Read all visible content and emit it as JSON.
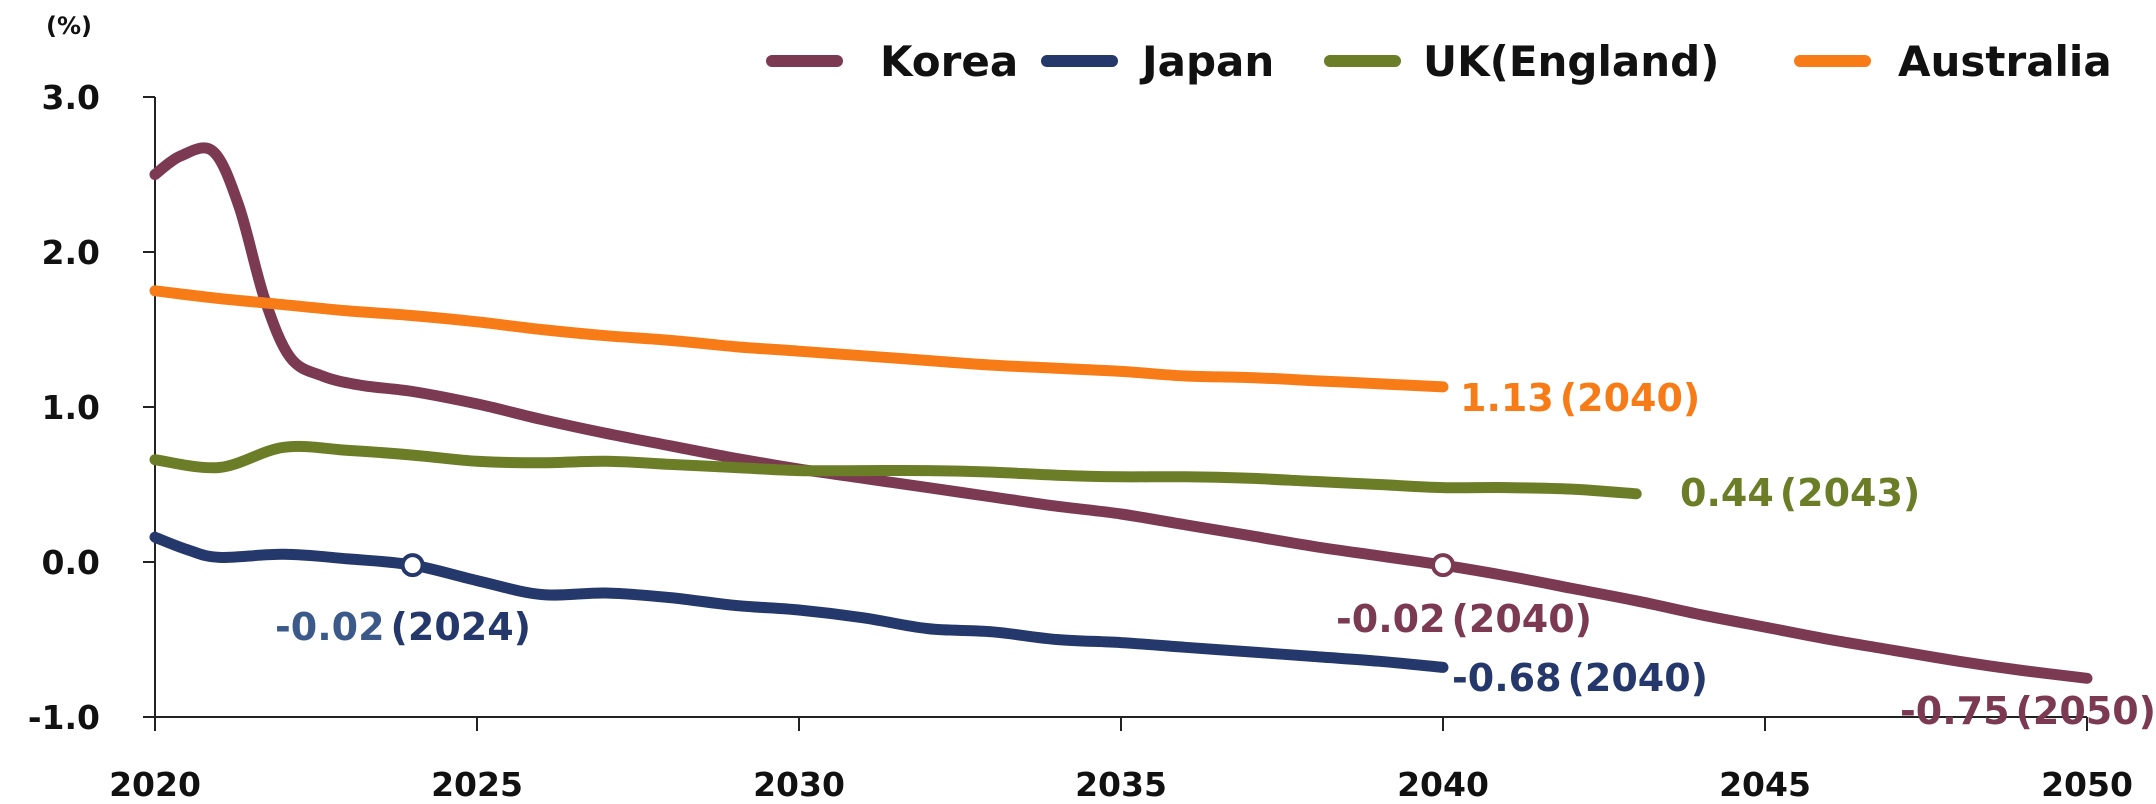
{
  "chart_data": {
    "type": "line",
    "ylabel": "(%)",
    "xlim": [
      2020,
      2050
    ],
    "ylim": [
      -1.0,
      3.0
    ],
    "x_ticks": [
      "2020",
      "2025",
      "2030",
      "2035",
      "2040",
      "2045",
      "2050"
    ],
    "y_ticks": [
      "3.0",
      "2.0",
      "1.0",
      "0.0",
      "-1.0"
    ],
    "grid": false,
    "legend_position": "top-right",
    "series": [
      {
        "name": "Korea",
        "color": "#7b3a52",
        "points": [
          [
            2020,
            2.5
          ],
          [
            2020.4,
            2.62
          ],
          [
            2020.9,
            2.65
          ],
          [
            2021.3,
            2.3
          ],
          [
            2021.7,
            1.7
          ],
          [
            2022.1,
            1.32
          ],
          [
            2022.6,
            1.2
          ],
          [
            2023.2,
            1.14
          ],
          [
            2024,
            1.1
          ],
          [
            2025,
            1.02
          ],
          [
            2026,
            0.92
          ],
          [
            2027,
            0.83
          ],
          [
            2028,
            0.75
          ],
          [
            2029,
            0.67
          ],
          [
            2030,
            0.6
          ],
          [
            2031,
            0.54
          ],
          [
            2032,
            0.48
          ],
          [
            2033,
            0.42
          ],
          [
            2034,
            0.36
          ],
          [
            2035,
            0.31
          ],
          [
            2036,
            0.24
          ],
          [
            2037,
            0.17
          ],
          [
            2038,
            0.1
          ],
          [
            2039,
            0.04
          ],
          [
            2040,
            -0.02
          ],
          [
            2041,
            -0.09
          ],
          [
            2042,
            -0.17
          ],
          [
            2043,
            -0.25
          ],
          [
            2044,
            -0.34
          ],
          [
            2045,
            -0.42
          ],
          [
            2046,
            -0.5
          ],
          [
            2047,
            -0.57
          ],
          [
            2048,
            -0.64
          ],
          [
            2049,
            -0.7
          ],
          [
            2050,
            -0.75
          ]
        ]
      },
      {
        "name": "Japan",
        "color": "#25386b",
        "points": [
          [
            2020,
            0.16
          ],
          [
            2020.5,
            0.08
          ],
          [
            2021,
            0.03
          ],
          [
            2022,
            0.05
          ],
          [
            2023,
            0.02
          ],
          [
            2024,
            -0.02
          ],
          [
            2025,
            -0.12
          ],
          [
            2026,
            -0.21
          ],
          [
            2027,
            -0.2
          ],
          [
            2028,
            -0.23
          ],
          [
            2029,
            -0.28
          ],
          [
            2030,
            -0.31
          ],
          [
            2031,
            -0.36
          ],
          [
            2032,
            -0.43
          ],
          [
            2033,
            -0.45
          ],
          [
            2034,
            -0.5
          ],
          [
            2035,
            -0.52
          ],
          [
            2036,
            -0.55
          ],
          [
            2037,
            -0.58
          ],
          [
            2038,
            -0.61
          ],
          [
            2039,
            -0.64
          ],
          [
            2040,
            -0.68
          ]
        ]
      },
      {
        "name": "UK(England)",
        "color": "#6b7d26",
        "points": [
          [
            2020,
            0.66
          ],
          [
            2021,
            0.61
          ],
          [
            2022,
            0.74
          ],
          [
            2023,
            0.72
          ],
          [
            2024,
            0.69
          ],
          [
            2025,
            0.65
          ],
          [
            2026,
            0.64
          ],
          [
            2027,
            0.65
          ],
          [
            2028,
            0.63
          ],
          [
            2029,
            0.61
          ],
          [
            2030,
            0.59
          ],
          [
            2031,
            0.59
          ],
          [
            2032,
            0.59
          ],
          [
            2033,
            0.58
          ],
          [
            2034,
            0.56
          ],
          [
            2035,
            0.55
          ],
          [
            2036,
            0.55
          ],
          [
            2037,
            0.54
          ],
          [
            2038,
            0.52
          ],
          [
            2039,
            0.5
          ],
          [
            2040,
            0.48
          ],
          [
            2041,
            0.48
          ],
          [
            2042,
            0.47
          ],
          [
            2043,
            0.44
          ]
        ]
      },
      {
        "name": "Australia",
        "color": "#f77b16",
        "points": [
          [
            2020,
            1.75
          ],
          [
            2021,
            1.7
          ],
          [
            2022,
            1.66
          ],
          [
            2023,
            1.62
          ],
          [
            2024,
            1.59
          ],
          [
            2025,
            1.55
          ],
          [
            2026,
            1.5
          ],
          [
            2027,
            1.46
          ],
          [
            2028,
            1.43
          ],
          [
            2029,
            1.39
          ],
          [
            2030,
            1.36
          ],
          [
            2031,
            1.33
          ],
          [
            2032,
            1.3
          ],
          [
            2033,
            1.27
          ],
          [
            2034,
            1.25
          ],
          [
            2035,
            1.23
          ],
          [
            2036,
            1.2
          ],
          [
            2037,
            1.19
          ],
          [
            2038,
            1.17
          ],
          [
            2039,
            1.15
          ],
          [
            2040,
            1.13
          ]
        ]
      }
    ],
    "markers": [
      {
        "series": "Japan",
        "x": 2024,
        "y": -0.02
      },
      {
        "series": "Korea",
        "x": 2040,
        "y": -0.02
      }
    ],
    "annotations": [
      {
        "value": "1.13",
        "year": "(2040)",
        "value_color": "#f77b16",
        "year_color": "#f77b16"
      },
      {
        "value": "0.44",
        "year": "(2043)",
        "value_color": "#6b7d26",
        "year_color": "#6b7d26"
      },
      {
        "value": "-0.02",
        "year": "(2024)",
        "value_color": "#3b5a8a",
        "year_color": "#25386b"
      },
      {
        "value": "-0.02",
        "year": "(2040)",
        "value_color": "#7b3a52",
        "year_color": "#7b3a52"
      },
      {
        "value": "-0.68",
        "year": "(2040)",
        "value_color": "#25386b",
        "year_color": "#25386b"
      },
      {
        "value": "-0.75",
        "year": "(2050)",
        "value_color": "#7b3a52",
        "year_color": "#7b3a52"
      }
    ]
  }
}
